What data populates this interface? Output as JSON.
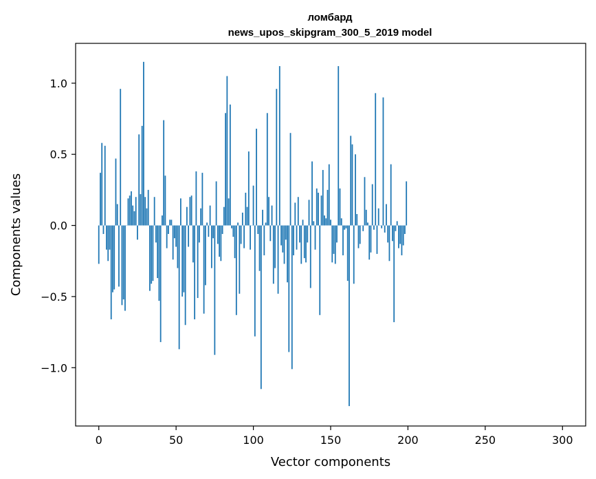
{
  "chart_data": {
    "type": "bar",
    "title": "ломбард",
    "subtitle": "news_upos_skipgram_300_5_2019 model",
    "xlabel": "Vector components",
    "ylabel": "Components values",
    "xlim": [
      -15,
      315
    ],
    "ylim": [
      -1.41,
      1.28
    ],
    "xticks": [
      0,
      50,
      100,
      150,
      200,
      250,
      300
    ],
    "yticks": [
      -1.0,
      -0.5,
      0.0,
      0.5,
      1.0
    ],
    "ytick_labels": [
      "−1.0",
      "−0.5",
      "0.0",
      "0.5",
      "1.0"
    ],
    "grid": false,
    "color": "#1f77b4",
    "values": [
      -0.27,
      0.37,
      0.58,
      -0.06,
      0.56,
      -0.17,
      -0.25,
      -0.17,
      -0.66,
      -0.47,
      -0.45,
      0.47,
      0.15,
      -0.43,
      0.96,
      -0.56,
      -0.52,
      -0.6,
      0.0,
      0.19,
      0.21,
      0.24,
      0.14,
      0.1,
      0.2,
      -0.1,
      0.64,
      0.22,
      0.7,
      1.15,
      0.2,
      0.12,
      0.25,
      -0.46,
      -0.41,
      -0.39,
      0.2,
      -0.12,
      -0.37,
      -0.53,
      -0.82,
      0.07,
      0.74,
      0.35,
      -0.16,
      -0.06,
      0.04,
      0.04,
      -0.24,
      -0.09,
      -0.15,
      -0.3,
      -0.87,
      0.19,
      -0.5,
      -0.47,
      -0.7,
      0.13,
      -0.15,
      0.2,
      0.21,
      -0.26,
      -0.66,
      0.38,
      -0.51,
      -0.12,
      0.12,
      0.37,
      -0.62,
      -0.42,
      0.02,
      -0.08,
      0.14,
      -0.3,
      -0.09,
      -0.91,
      0.31,
      -0.13,
      -0.22,
      -0.25,
      -0.06,
      0.13,
      0.79,
      1.05,
      0.19,
      0.85,
      -0.02,
      -0.08,
      -0.23,
      -0.63,
      0.02,
      -0.48,
      -0.13,
      0.09,
      -0.16,
      0.23,
      0.13,
      0.52,
      -0.17,
      0.0,
      0.28,
      -0.78,
      0.68,
      -0.06,
      -0.32,
      -1.15,
      0.11,
      -0.21,
      0.02,
      0.79,
      0.2,
      -0.11,
      0.14,
      -0.41,
      -0.3,
      0.96,
      -0.48,
      1.12,
      -0.14,
      -0.19,
      -0.27,
      -0.1,
      -0.4,
      -0.89,
      0.65,
      -1.01,
      -0.21,
      0.16,
      -0.17,
      0.2,
      -0.12,
      -0.27,
      0.04,
      -0.23,
      -0.26,
      -0.12,
      0.18,
      -0.44,
      0.45,
      0.03,
      -0.17,
      0.26,
      0.23,
      -0.63,
      0.21,
      0.39,
      0.07,
      0.05,
      0.25,
      0.43,
      0.04,
      -0.26,
      -0.2,
      -0.27,
      -0.12,
      1.12,
      0.26,
      0.05,
      -0.21,
      -0.03,
      -0.02,
      -0.39,
      -1.27,
      0.63,
      0.57,
      -0.41,
      0.5,
      0.08,
      -0.16,
      -0.13,
      0.0,
      -0.04,
      0.34,
      0.11,
      0.02,
      -0.24,
      -0.19,
      0.29,
      -0.03,
      0.93,
      -0.2,
      0.12,
      0.0,
      -0.02,
      0.9,
      -0.05,
      0.15,
      -0.12,
      -0.25,
      0.43,
      -0.11,
      -0.68,
      -0.04,
      0.03,
      -0.16,
      -0.13,
      -0.21,
      -0.14,
      -0.06,
      0.31
    ]
  }
}
